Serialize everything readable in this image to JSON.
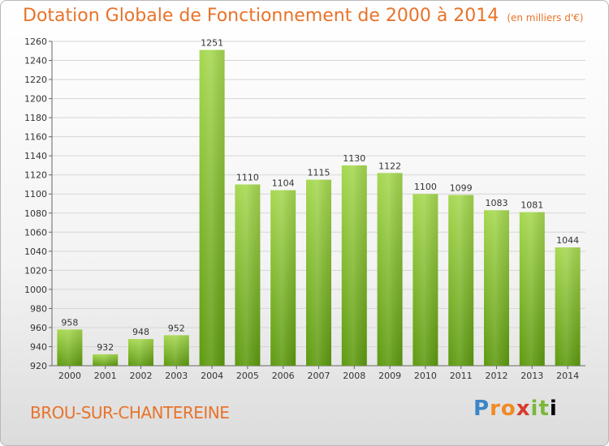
{
  "chart_data": {
    "type": "bar",
    "title": "Dotation Globale de Fonctionnement de 2000 à 2014",
    "unit_note": "(en milliers d'€)",
    "categories": [
      "2000",
      "2001",
      "2002",
      "2003",
      "2004",
      "2005",
      "2006",
      "2007",
      "2008",
      "2009",
      "2010",
      "2011",
      "2012",
      "2013",
      "2014"
    ],
    "values": [
      958,
      932,
      948,
      952,
      1251,
      1110,
      1104,
      1115,
      1130,
      1122,
      1100,
      1099,
      1083,
      1081,
      1044
    ],
    "ylim": [
      920,
      1260
    ],
    "ytick_step": 20,
    "grid": true,
    "colors": {
      "bar_light": "#9fd24a",
      "bar_dark": "#5f9a12",
      "text": "#e8732a"
    }
  },
  "footer": {
    "city": "BROU-SUR-CHANTEREINE",
    "logo": "Proxiti"
  }
}
